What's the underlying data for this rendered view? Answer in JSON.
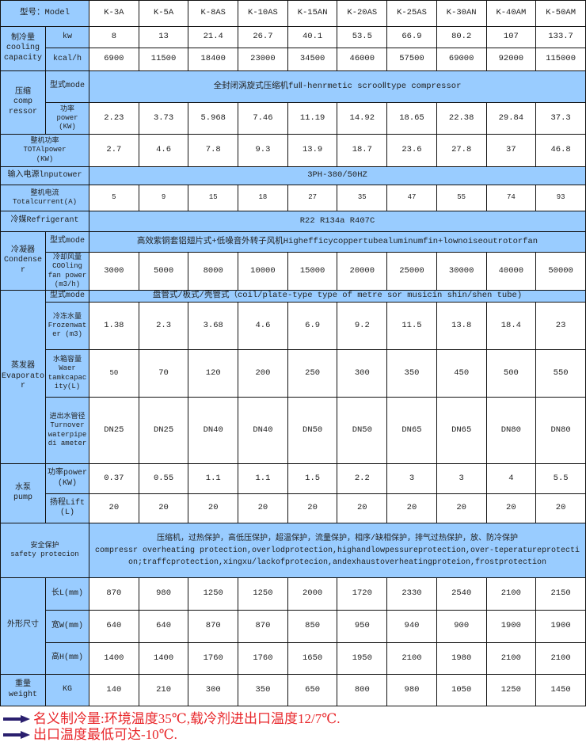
{
  "header": {
    "label": "型号：Model",
    "models": [
      "K-3A",
      "K-5A",
      "K-8AS",
      "K-10AS",
      "K-15AN",
      "K-20AS",
      "K-25AS",
      "K-30AN",
      "K-40AM",
      "K-50AM"
    ]
  },
  "sections": [
    {
      "label": "制冷量\ncooling\ncapacity",
      "rows": [
        {
          "label": "kw",
          "values": [
            "8",
            "13",
            "21.4",
            "26.7",
            "40.1",
            "53.5",
            "66.9",
            "80.2",
            "107",
            "133.7"
          ]
        },
        {
          "label": "kcal/h",
          "values": [
            "6900",
            "11500",
            "18400",
            "23000",
            "34500",
            "46000",
            "57500",
            "69000",
            "92000",
            "115000"
          ]
        }
      ]
    },
    {
      "label": "压缩\ncomp\nressor",
      "rows": [
        {
          "label": "型式mode",
          "span": "全封闭涡旋式压缩机fuⅡ-henrmetic scrooⅡtype compressor"
        },
        {
          "label": "功率\npower\n(KW)",
          "values": [
            "2.23",
            "3.73",
            "5.968",
            "7.46",
            "11.19",
            "14.92",
            "18.65",
            "22.38",
            "29.84",
            "37.3"
          ]
        }
      ]
    },
    {
      "label": "整机功率\nTOTAlpower\n(KW)",
      "values": [
        "2.7",
        "4.6",
        "7.8",
        "9.3",
        "13.9",
        "18.7",
        "23.6",
        "27.8",
        "37",
        "46.8"
      ]
    },
    {
      "label": "输入电源lnputower",
      "span": "3PH-380/50HZ"
    },
    {
      "label": "整机电流\nTotalcurrent(A)",
      "values": [
        "5",
        "9",
        "15",
        "18",
        "27",
        "35",
        "47",
        "55",
        "74",
        "93"
      ]
    },
    {
      "label": "冷媒Refrigerant",
      "span": "R22 R134a R407C"
    },
    {
      "label": "冷凝器\nCondense\nr",
      "rows": [
        {
          "label": "型式mode",
          "span": "高效紫铜套铝翅片式+低噪音外转子风机Highefficycoppertubealuminumfin+lownoiseoutrotorfan"
        },
        {
          "label": "冷却风量\nCOOling\nfan power\n(m3/h)",
          "values": [
            "3000",
            "5000",
            "8000",
            "10000",
            "15000",
            "20000",
            "25000",
            "30000",
            "40000",
            "50000"
          ]
        }
      ]
    },
    {
      "label": "蒸发器\nEvaporato\nr",
      "rows": [
        {
          "label": "型式mode",
          "span": "盘管式/板式/壳管式（coil/plate-type type of metre sor musicin shin/shen tube)"
        },
        {
          "label": "冷冻水量\nFrozenwat\ner (m3)",
          "values": [
            "1.38",
            "2.3",
            "3.68",
            "4.6",
            "6.9",
            "9.2",
            "11.5",
            "13.8",
            "18.4",
            "23"
          ]
        },
        {
          "label": "水箱容量\nWaer\ntamkcapac\nity(L)",
          "values": [
            "50",
            "70",
            "120",
            "200",
            "250",
            "300",
            "350",
            "450",
            "500",
            "550"
          ]
        },
        {
          "label": "进出水管径\nTurnover\nwaterpipe\ndi ameter",
          "values": [
            "DN25",
            "DN25",
            "DN40",
            "DN40",
            "DN50",
            "DN50",
            "DN65",
            "DN65",
            "DN80",
            "DN80"
          ]
        }
      ]
    },
    {
      "label": "水泵\npump",
      "rows": [
        {
          "label": "功率power\n(KW)",
          "values": [
            "0.37",
            "0.55",
            "1.1",
            "1.1",
            "1.5",
            "2.2",
            "3",
            "3",
            "4",
            "5.5"
          ]
        },
        {
          "label": "扬程Lift\n(L)",
          "values": [
            "20",
            "20",
            "20",
            "20",
            "20",
            "20",
            "20",
            "20",
            "20",
            "20"
          ]
        }
      ]
    },
    {
      "label": "安全保护\nsafety protecion",
      "span": "压缩机，过热保护，高低压保护，超温保护，流量保护，相序/缺相保护，排气过热保护，放、防冷保护\ncompressr overheating protection,overlodprotection,highandlowpessureprotection,over-teperatureprotection;traffcprotection,xingxu/lackofprotecion,andexhaustoverheatingproteion,frostprotection"
    },
    {
      "label": "外形尺寸",
      "rows": [
        {
          "label": "长L(mm)",
          "values": [
            "870",
            "980",
            "1250",
            "1250",
            "2000",
            "1720",
            "2330",
            "2540",
            "2100",
            "2150"
          ]
        },
        {
          "label": "宽W(mm)",
          "values": [
            "640",
            "640",
            "870",
            "870",
            "850",
            "950",
            "940",
            "900",
            "1900",
            "1900"
          ]
        },
        {
          "label": "高H(mm)",
          "values": [
            "1400",
            "1400",
            "1760",
            "1760",
            "1650",
            "1950",
            "2100",
            "1980",
            "2100",
            "2100"
          ]
        }
      ]
    },
    {
      "label": "重量\nweight",
      "rows": [
        {
          "label": "KG",
          "values": [
            "140",
            "210",
            "300",
            "350",
            "650",
            "800",
            "980",
            "1050",
            "1250",
            "1450"
          ]
        }
      ]
    }
  ],
  "notes": [
    "名义制冷量:环境温度35℃,载冷剂进出口温度12/7℃.",
    "出口温度最低可达-10℃."
  ],
  "colors": {
    "header_bg": "#99ccff",
    "note_text": "#e8262a",
    "arrow": "#2a1f6e"
  }
}
